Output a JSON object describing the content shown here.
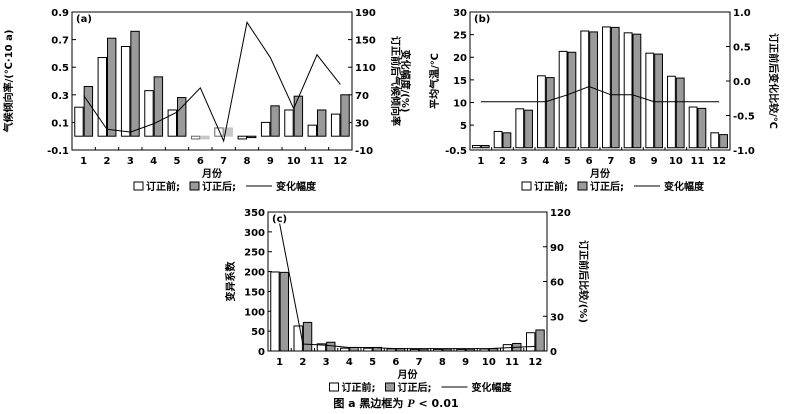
{
  "chart_data": [
    {
      "type": "bar",
      "panel_label": "(a)",
      "categories": [
        "1",
        "2",
        "3",
        "4",
        "5",
        "6",
        "7",
        "8",
        "9",
        "10",
        "11",
        "12"
      ],
      "xlabel": "月份",
      "ylabel": "气候倾向率/(℃·10 a)",
      "y2label": [
        "订正前后气候倾向率",
        "变化幅度/(%)"
      ],
      "ylim": [
        -0.1,
        0.9
      ],
      "yticks": [
        -0.1,
        0.1,
        0.3,
        0.5,
        0.7,
        0.9
      ],
      "y2lim": [
        -10,
        190
      ],
      "y2ticks": [
        -10,
        30,
        70,
        110,
        150,
        190
      ],
      "series": [
        {
          "name": "订正前",
          "values": [
            0.21,
            0.57,
            0.65,
            0.33,
            0.19,
            -0.02,
            0.06,
            -0.02,
            0.1,
            0.19,
            0.08,
            0.16
          ],
          "color": "#ffffff"
        },
        {
          "name": "订正后",
          "values": [
            0.36,
            0.71,
            0.76,
            0.43,
            0.28,
            -0.02,
            0.06,
            -0.01,
            0.22,
            0.29,
            0.19,
            0.3
          ],
          "color": "#9a9a9a"
        },
        {
          "name": "变化幅度",
          "type": "line",
          "axis": "right",
          "values": [
            69,
            20,
            16,
            28,
            45,
            80,
            3,
            175,
            124,
            50,
            128,
            85
          ]
        }
      ],
      "highlight_categories": [
        "6",
        "7"
      ]
    },
    {
      "type": "bar",
      "panel_label": "(b)",
      "categories": [
        "1",
        "2",
        "3",
        "4",
        "5",
        "6",
        "7",
        "8",
        "9",
        "10",
        "11",
        "12"
      ],
      "xlabel": "月份",
      "ylabel": "平均气温/℃",
      "y2label": [
        "订正前后变化比较/℃"
      ],
      "ylim": [
        -0.5,
        30
      ],
      "yticks": [
        -0.5,
        5,
        10,
        15,
        20,
        25,
        30
      ],
      "ytick_labels": [
        "-0.5",
        "5",
        "10",
        "15",
        "20",
        "25",
        "30"
      ],
      "y2lim": [
        -1.0,
        1.0
      ],
      "y2ticks": [
        -1.0,
        -0.5,
        0.0,
        0.5,
        1.0
      ],
      "series": [
        {
          "name": "订正前",
          "values": [
            0.5,
            3.6,
            8.6,
            15.9,
            21.3,
            25.8,
            26.7,
            25.4,
            20.9,
            15.8,
            9.0,
            3.3
          ],
          "color": "#ffffff"
        },
        {
          "name": "订正后",
          "values": [
            0.5,
            3.3,
            8.3,
            15.5,
            21.1,
            25.6,
            26.6,
            25.1,
            20.7,
            15.4,
            8.7,
            2.9
          ],
          "color": "#9a9a9a"
        },
        {
          "name": "变化幅度",
          "type": "line",
          "axis": "right",
          "values": [
            -0.3,
            -0.3,
            -0.3,
            -0.3,
            -0.2,
            -0.08,
            -0.2,
            -0.2,
            -0.3,
            -0.3,
            -0.3,
            -0.3
          ]
        }
      ]
    },
    {
      "type": "bar",
      "panel_label": "(c)",
      "categories": [
        "1",
        "2",
        "3",
        "4",
        "5",
        "6",
        "7",
        "8",
        "9",
        "10",
        "11",
        "12"
      ],
      "xlabel": "月份",
      "ylabel": "变异系数",
      "y2label": [
        "订正前后比较/(%)"
      ],
      "ylim": [
        0,
        350
      ],
      "yticks": [
        0,
        50,
        100,
        150,
        200,
        250,
        300,
        350
      ],
      "y2lim": [
        0,
        120
      ],
      "y2ticks": [
        0,
        30,
        60,
        90,
        120
      ],
      "series": [
        {
          "name": "订正前",
          "values": [
            199,
            63,
            18,
            7,
            7,
            5,
            4,
            4,
            4,
            5,
            16,
            46
          ],
          "color": "#ffffff"
        },
        {
          "name": "订正后",
          "values": [
            198,
            72,
            22,
            9,
            9,
            6,
            5,
            5,
            5,
            6,
            19,
            53
          ],
          "color": "#9a9a9a"
        },
        {
          "name": "变化幅度",
          "type": "line",
          "axis": "right",
          "values": [
            110,
            6,
            5,
            3,
            3,
            2,
            2,
            2,
            2,
            2,
            3,
            4
          ]
        }
      ]
    }
  ],
  "legend": {
    "before": "订正前;",
    "after": "订正后;",
    "line": "变化幅度"
  },
  "caption": {
    "prefix": "图 a 黑边框为",
    "var": "P",
    "suffix": "< 0.01"
  }
}
